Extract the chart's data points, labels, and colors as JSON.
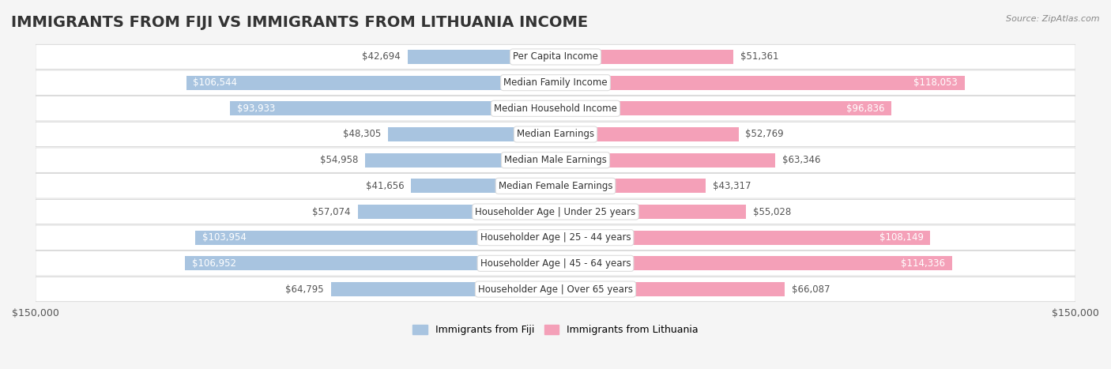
{
  "title": "IMMIGRANTS FROM FIJI VS IMMIGRANTS FROM LITHUANIA INCOME",
  "source": "Source: ZipAtlas.com",
  "categories": [
    "Per Capita Income",
    "Median Family Income",
    "Median Household Income",
    "Median Earnings",
    "Median Male Earnings",
    "Median Female Earnings",
    "Householder Age | Under 25 years",
    "Householder Age | 25 - 44 years",
    "Householder Age | 45 - 64 years",
    "Householder Age | Over 65 years"
  ],
  "fiji_values": [
    42694,
    106544,
    93933,
    48305,
    54958,
    41656,
    57074,
    103954,
    106952,
    64795
  ],
  "lithuania_values": [
    51361,
    118053,
    96836,
    52769,
    63346,
    43317,
    55028,
    108149,
    114336,
    66087
  ],
  "fiji_color": "#a8c4e0",
  "lithuania_color": "#f4a0b8",
  "fiji_label": "Immigrants from Fiji",
  "lithuania_label": "Immigrants from Lithuania",
  "fiji_dark_color": "#6699cc",
  "lithuania_dark_color": "#e8608a",
  "max_val": 150000,
  "background_color": "#f5f5f5",
  "row_bg_color": "#f0f0f0",
  "label_bg_color": "#ffffff",
  "title_fontsize": 14,
  "tick_fontsize": 9,
  "value_fontsize": 8.5,
  "category_fontsize": 8.5
}
